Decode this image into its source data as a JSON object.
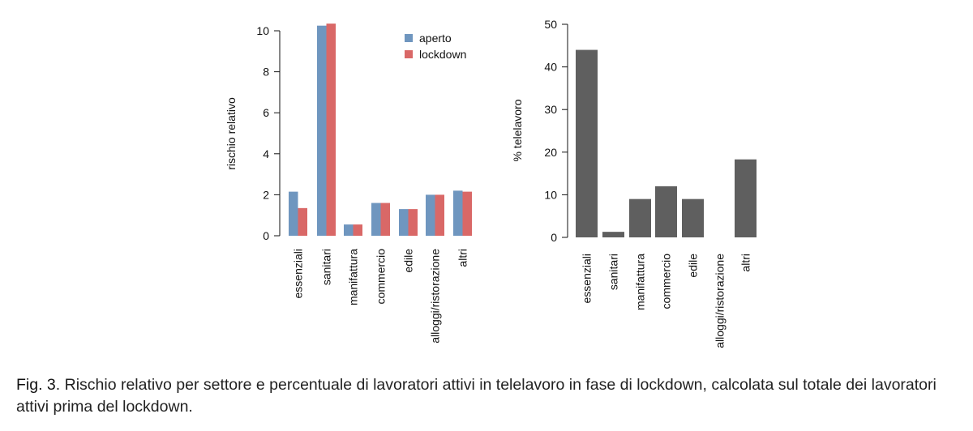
{
  "chart_data": [
    {
      "type": "bar",
      "categories": [
        "essenziali",
        "sanitari",
        "manifattura",
        "commercio",
        "edile",
        "alloggi/ristorazione",
        "altri"
      ],
      "series": [
        {
          "name": "aperto",
          "values": [
            2.15,
            10.25,
            0.55,
            1.6,
            1.3,
            2.0,
            2.2
          ]
        },
        {
          "name": "lockdown",
          "values": [
            1.35,
            10.35,
            0.55,
            1.6,
            1.3,
            2.0,
            2.15
          ]
        }
      ],
      "ylabel": "rischio relativo",
      "ylim": [
        0,
        10.5
      ],
      "yticks": [
        0,
        2,
        4,
        6,
        8,
        10
      ],
      "legend": "top-right"
    },
    {
      "type": "bar",
      "categories": [
        "essenziali",
        "sanitari",
        "manifattura",
        "commercio",
        "edile",
        "alloggi/ristorazione",
        "altri"
      ],
      "values": [
        44,
        1.3,
        9,
        12,
        9,
        0,
        18.3
      ],
      "ylabel": "% telelavoro",
      "ylim": [
        0,
        50
      ],
      "yticks": [
        0,
        10,
        20,
        30,
        40,
        50
      ]
    }
  ],
  "colors": {
    "aperto": "#6f96bf",
    "lockdown": "#d96867",
    "telelavoro": "#5f5f5f"
  },
  "caption": {
    "label": "Fig. 3",
    "text": ". Rischio relativo per settore e percentuale di lavoratori attivi in telelavoro in fase di lockdown, calcolata sul totale dei lavoratori attivi prima del lockdown."
  }
}
